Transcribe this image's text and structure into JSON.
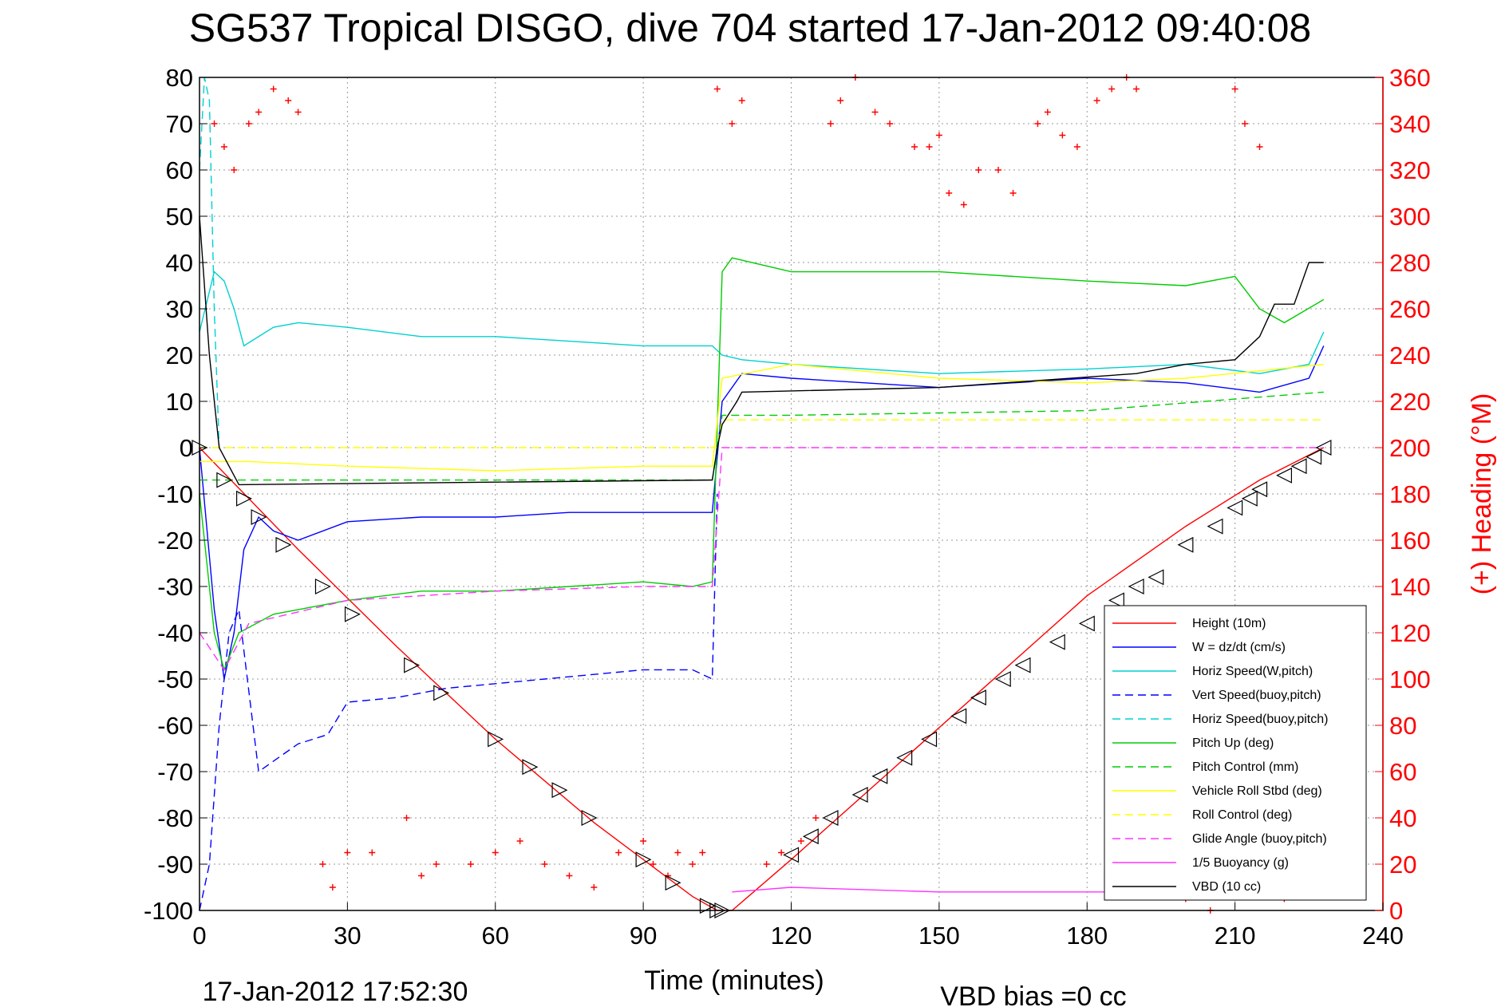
{
  "chart_data": {
    "type": "line",
    "title": "SG537 Tropical DISGO, dive 704 started 17-Jan-2012 09:40:08",
    "xlabel": "Time (minutes)",
    "ylabel_right": "(+) Heading (°M)",
    "xlim": [
      0,
      240
    ],
    "ylim_left": [
      -100,
      80
    ],
    "ylim_right": [
      0,
      360
    ],
    "x_ticks": [
      "0",
      "30",
      "60",
      "90",
      "120",
      "150",
      "180",
      "210",
      "240"
    ],
    "y_ticks_left": [
      "80",
      "70",
      "60",
      "50",
      "40",
      "30",
      "20",
      "10",
      "0",
      "-10",
      "-20",
      "-30",
      "-40",
      "-50",
      "-60",
      "-70",
      "-80",
      "-90",
      "-100"
    ],
    "y_ticks_right": [
      "360",
      "340",
      "320",
      "300",
      "280",
      "260",
      "240",
      "220",
      "200",
      "180",
      "160",
      "140",
      "120",
      "100",
      "80",
      "60",
      "40",
      "20",
      "0"
    ],
    "grid": true,
    "legend_position": "bottom-right",
    "footer_left": "17-Jan-2012 17:52:30",
    "footer_right": "VBD bias =0 cc",
    "series": [
      {
        "name": "Height (10m)",
        "color": "#ff0000",
        "style": "solid",
        "x": [
          0,
          20,
          40,
          60,
          80,
          100,
          105,
          108,
          120,
          140,
          160,
          180,
          200,
          215,
          228
        ],
        "y": [
          0,
          -22,
          -43,
          -63,
          -81,
          -97,
          -100,
          -100,
          -89,
          -70,
          -51,
          -32,
          -17,
          -7,
          0
        ]
      },
      {
        "name": "W = dz/dt (cm/s)",
        "color": "#0000ff",
        "style": "solid",
        "x": [
          0,
          3,
          5,
          7,
          9,
          12,
          15,
          20,
          30,
          45,
          60,
          75,
          90,
          100,
          104,
          106,
          110,
          120,
          150,
          180,
          200,
          215,
          225,
          228
        ],
        "y": [
          0,
          -35,
          -50,
          -40,
          -22,
          -15,
          -18,
          -20,
          -16,
          -15,
          -15,
          -14,
          -14,
          -14,
          -14,
          10,
          16,
          15,
          13,
          15,
          14,
          12,
          15,
          22
        ]
      },
      {
        "name": "Horiz Speed(W,pitch)",
        "color": "#00d0d0",
        "style": "solid",
        "x": [
          0,
          3,
          5,
          7,
          9,
          15,
          20,
          30,
          45,
          60,
          75,
          90,
          100,
          104,
          106,
          110,
          120,
          150,
          180,
          200,
          215,
          225,
          228
        ],
        "y": [
          25,
          38,
          36,
          30,
          22,
          26,
          27,
          26,
          24,
          24,
          23,
          22,
          22,
          22,
          20,
          19,
          18,
          16,
          17,
          18,
          16,
          18,
          25
        ]
      },
      {
        "name": "Vert Speed(buoy,pitch)",
        "color": "#0000ff",
        "style": "dashed",
        "x": [
          0,
          2,
          4,
          6,
          8,
          12,
          20,
          26,
          30,
          40,
          50,
          60,
          70,
          80,
          90,
          100,
          104,
          105
        ],
        "y": [
          -100,
          -90,
          -60,
          -40,
          -35,
          -70,
          -64,
          -62,
          -55,
          -54,
          -52,
          -51,
          -50,
          -49,
          -48,
          -48,
          -50,
          -10
        ]
      },
      {
        "name": "Horiz Speed(buoy,pitch)",
        "color": "#00d0d0",
        "style": "dashed",
        "x": [
          0,
          1,
          2,
          3,
          4
        ],
        "y": [
          60,
          80,
          75,
          30,
          0
        ]
      },
      {
        "name": "Pitch Up (deg)",
        "color": "#00cc00",
        "style": "solid",
        "x": [
          0,
          3,
          5,
          8,
          15,
          30,
          45,
          60,
          75,
          90,
          100,
          104,
          106,
          108,
          120,
          150,
          180,
          200,
          210,
          215,
          220,
          228
        ],
        "y": [
          -10,
          -40,
          -48,
          -40,
          -36,
          -33,
          -31,
          -31,
          -30,
          -29,
          -30,
          -29,
          38,
          41,
          38,
          38,
          36,
          35,
          37,
          30,
          27,
          32
        ]
      },
      {
        "name": "Pitch Control (mm)",
        "color": "#00cc00",
        "style": "dashed",
        "x": [
          0,
          5,
          104,
          106,
          120,
          180,
          228
        ],
        "y": [
          -7,
          -7,
          -7,
          7,
          7,
          8,
          12
        ]
      },
      {
        "name": "Vehicle Roll Stbd (deg)",
        "color": "#ffff00",
        "style": "solid",
        "x": [
          0,
          10,
          30,
          60,
          90,
          100,
          104,
          106,
          120,
          150,
          180,
          200,
          228
        ],
        "y": [
          -3,
          -3,
          -4,
          -5,
          -4,
          -4,
          -4,
          15,
          18,
          15,
          14,
          15,
          18
        ]
      },
      {
        "name": "Roll Control (deg)",
        "color": "#ffff00",
        "style": "dashed",
        "x": [
          0,
          105,
          106,
          228
        ],
        "y": [
          0,
          0,
          6,
          6
        ]
      },
      {
        "name": "Glide Angle (buoy,pitch)",
        "color": "#ff33ff",
        "style": "dashed",
        "x": [
          0,
          5,
          10,
          30,
          60,
          90,
          104,
          106,
          228
        ],
        "y": [
          -40,
          -48,
          -38,
          -33,
          -31,
          -30,
          -30,
          0,
          0
        ]
      },
      {
        "name": "1/5 Buoyancy (g)",
        "color": "#ff33ff",
        "style": "solid",
        "x": [
          108,
          120,
          150,
          180,
          185
        ],
        "y": [
          -96,
          -95,
          -96,
          -96,
          -96
        ]
      },
      {
        "name": "VBD (10 cc)",
        "color": "#000000",
        "style": "solid",
        "x": [
          0,
          2,
          4,
          8,
          104,
          105,
          106,
          109,
          110,
          150,
          190,
          200,
          210,
          215,
          218,
          222,
          225,
          228
        ],
        "y": [
          50,
          20,
          0,
          -8,
          -7,
          0,
          5,
          10,
          12,
          13,
          16,
          18,
          19,
          24,
          31,
          31,
          40,
          40
        ]
      },
      {
        "name": "Heading",
        "color": "#ff0000",
        "style": "marker-plus",
        "axis": "right",
        "x": [
          3,
          5,
          7,
          10,
          12,
          15,
          18,
          20,
          25,
          27,
          30,
          35,
          42,
          45,
          48,
          55,
          60,
          65,
          70,
          75,
          80,
          85,
          90,
          92,
          95,
          97,
          100,
          102,
          105,
          108,
          110,
          115,
          118,
          122,
          125,
          128,
          130,
          133,
          137,
          140,
          145,
          148,
          150,
          152,
          155,
          158,
          162,
          165,
          170,
          172,
          175,
          178,
          182,
          185,
          188,
          190,
          200,
          205,
          210,
          212,
          215,
          217,
          220
        ],
        "y": [
          340,
          330,
          320,
          340,
          345,
          355,
          350,
          345,
          20,
          10,
          25,
          25,
          40,
          15,
          20,
          20,
          25,
          30,
          20,
          15,
          10,
          25,
          30,
          20,
          15,
          25,
          20,
          25,
          355,
          340,
          350,
          20,
          25,
          30,
          40,
          340,
          350,
          360,
          345,
          340,
          330,
          330,
          335,
          310,
          305,
          320,
          320,
          310,
          340,
          345,
          335,
          330,
          350,
          355,
          360,
          355,
          5,
          0,
          355,
          340,
          330,
          10,
          5
        ]
      }
    ],
    "dive_markers": {
      "style": "triangle",
      "descent": {
        "x": [
          0,
          5,
          9,
          12,
          17,
          25,
          31,
          43,
          49,
          60,
          67,
          73,
          79,
          90,
          96,
          103,
          105,
          106
        ],
        "y": [
          0,
          -7,
          -11,
          -15,
          -21,
          -30,
          -36,
          -47,
          -53,
          -63,
          -69,
          -74,
          -80,
          -89,
          -94,
          -99,
          -100,
          -100
        ]
      },
      "ascent": {
        "x": [
          120,
          124,
          128,
          134,
          138,
          143,
          148,
          154,
          158,
          163,
          167,
          174,
          180,
          186,
          190,
          194,
          200,
          206,
          210,
          213,
          215,
          220,
          223,
          226,
          228
        ],
        "y": [
          -88,
          -84,
          -80,
          -75,
          -71,
          -67,
          -63,
          -58,
          -54,
          -50,
          -47,
          -42,
          -38,
          -33,
          -30,
          -28,
          -21,
          -17,
          -13,
          -11,
          -9,
          -6,
          -4,
          -2,
          0
        ]
      }
    }
  }
}
